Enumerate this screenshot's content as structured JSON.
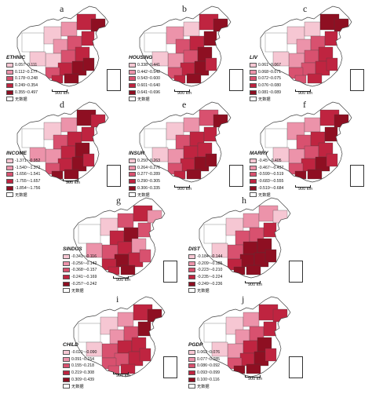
{
  "colors": {
    "class1": "#f6c7d3",
    "class2": "#ec93aa",
    "class3": "#d8516f",
    "class4": "#bf2440",
    "class5": "#8e0f22",
    "nodata": "#ffffff",
    "outline": "#444444"
  },
  "scale_label": "900 km",
  "nodata_label": "无数据",
  "panels": [
    {
      "letter": "a",
      "variable": "ETHNIC",
      "classes": [
        "0.057~0.111",
        "0.112~0.177",
        "0.178~0.248",
        "0.249~0.354",
        "0.355~0.497"
      ]
    },
    {
      "letter": "b",
      "variable": "HOUSING",
      "classes": [
        "0.338~0.441",
        "0.442~0.542",
        "0.543~0.600",
        "0.601~0.640",
        "0.641~0.696"
      ]
    },
    {
      "letter": "c",
      "variable": "LIV",
      "classes": [
        "0.061~0.067",
        "0.068~0.071",
        "0.072~0.075",
        "0.076~0.080",
        "0.081~0.089"
      ]
    },
    {
      "letter": "d",
      "variable": "INCOME",
      "classes": [
        "-1.371~-0.952",
        "-1.540~-1.372",
        "-1.656~-1.541",
        "-1.755~-1.657",
        "-1.854~-1.756"
      ]
    },
    {
      "letter": "e",
      "variable": "INSUR",
      "classes": [
        "0.250~0.263",
        "0.264~0.276",
        "0.277~0.289",
        "0.290~0.305",
        "0.306~0.335"
      ]
    },
    {
      "letter": "f",
      "variable": "MARRY",
      "classes": [
        "-0.45~-0.405",
        "-0.467~-0.437",
        "-0.599~-0.519",
        "-0.683~-0.555",
        "-0.519~-0.684"
      ]
    },
    {
      "letter": "g",
      "variable": "SINDUS",
      "classes": [
        "-0.341~-0.116",
        "-0.256~-0.142",
        "-0.368~-0.157",
        "-0.241~-0.169",
        "-0.257~-0.242"
      ]
    },
    {
      "letter": "h",
      "variable": "DIST",
      "classes": [
        "-0.184~-0.144",
        "-0.209~-0.185",
        "-0.223~-0.210",
        "-0.235~-0.224",
        "-0.249~-0.236"
      ]
    },
    {
      "letter": "i",
      "variable": "CHILD",
      "classes": [
        "-0.021~-0.090",
        "0.091~0.154",
        "0.155~0.218",
        "0.219~0.308",
        "0.309~0.439"
      ]
    },
    {
      "letter": "j",
      "variable": "PGDP",
      "classes": [
        "0.062~0.076",
        "0.077~0.085",
        "0.086~0.092",
        "0.093~0.099",
        "0.100~0.116"
      ]
    }
  ]
}
